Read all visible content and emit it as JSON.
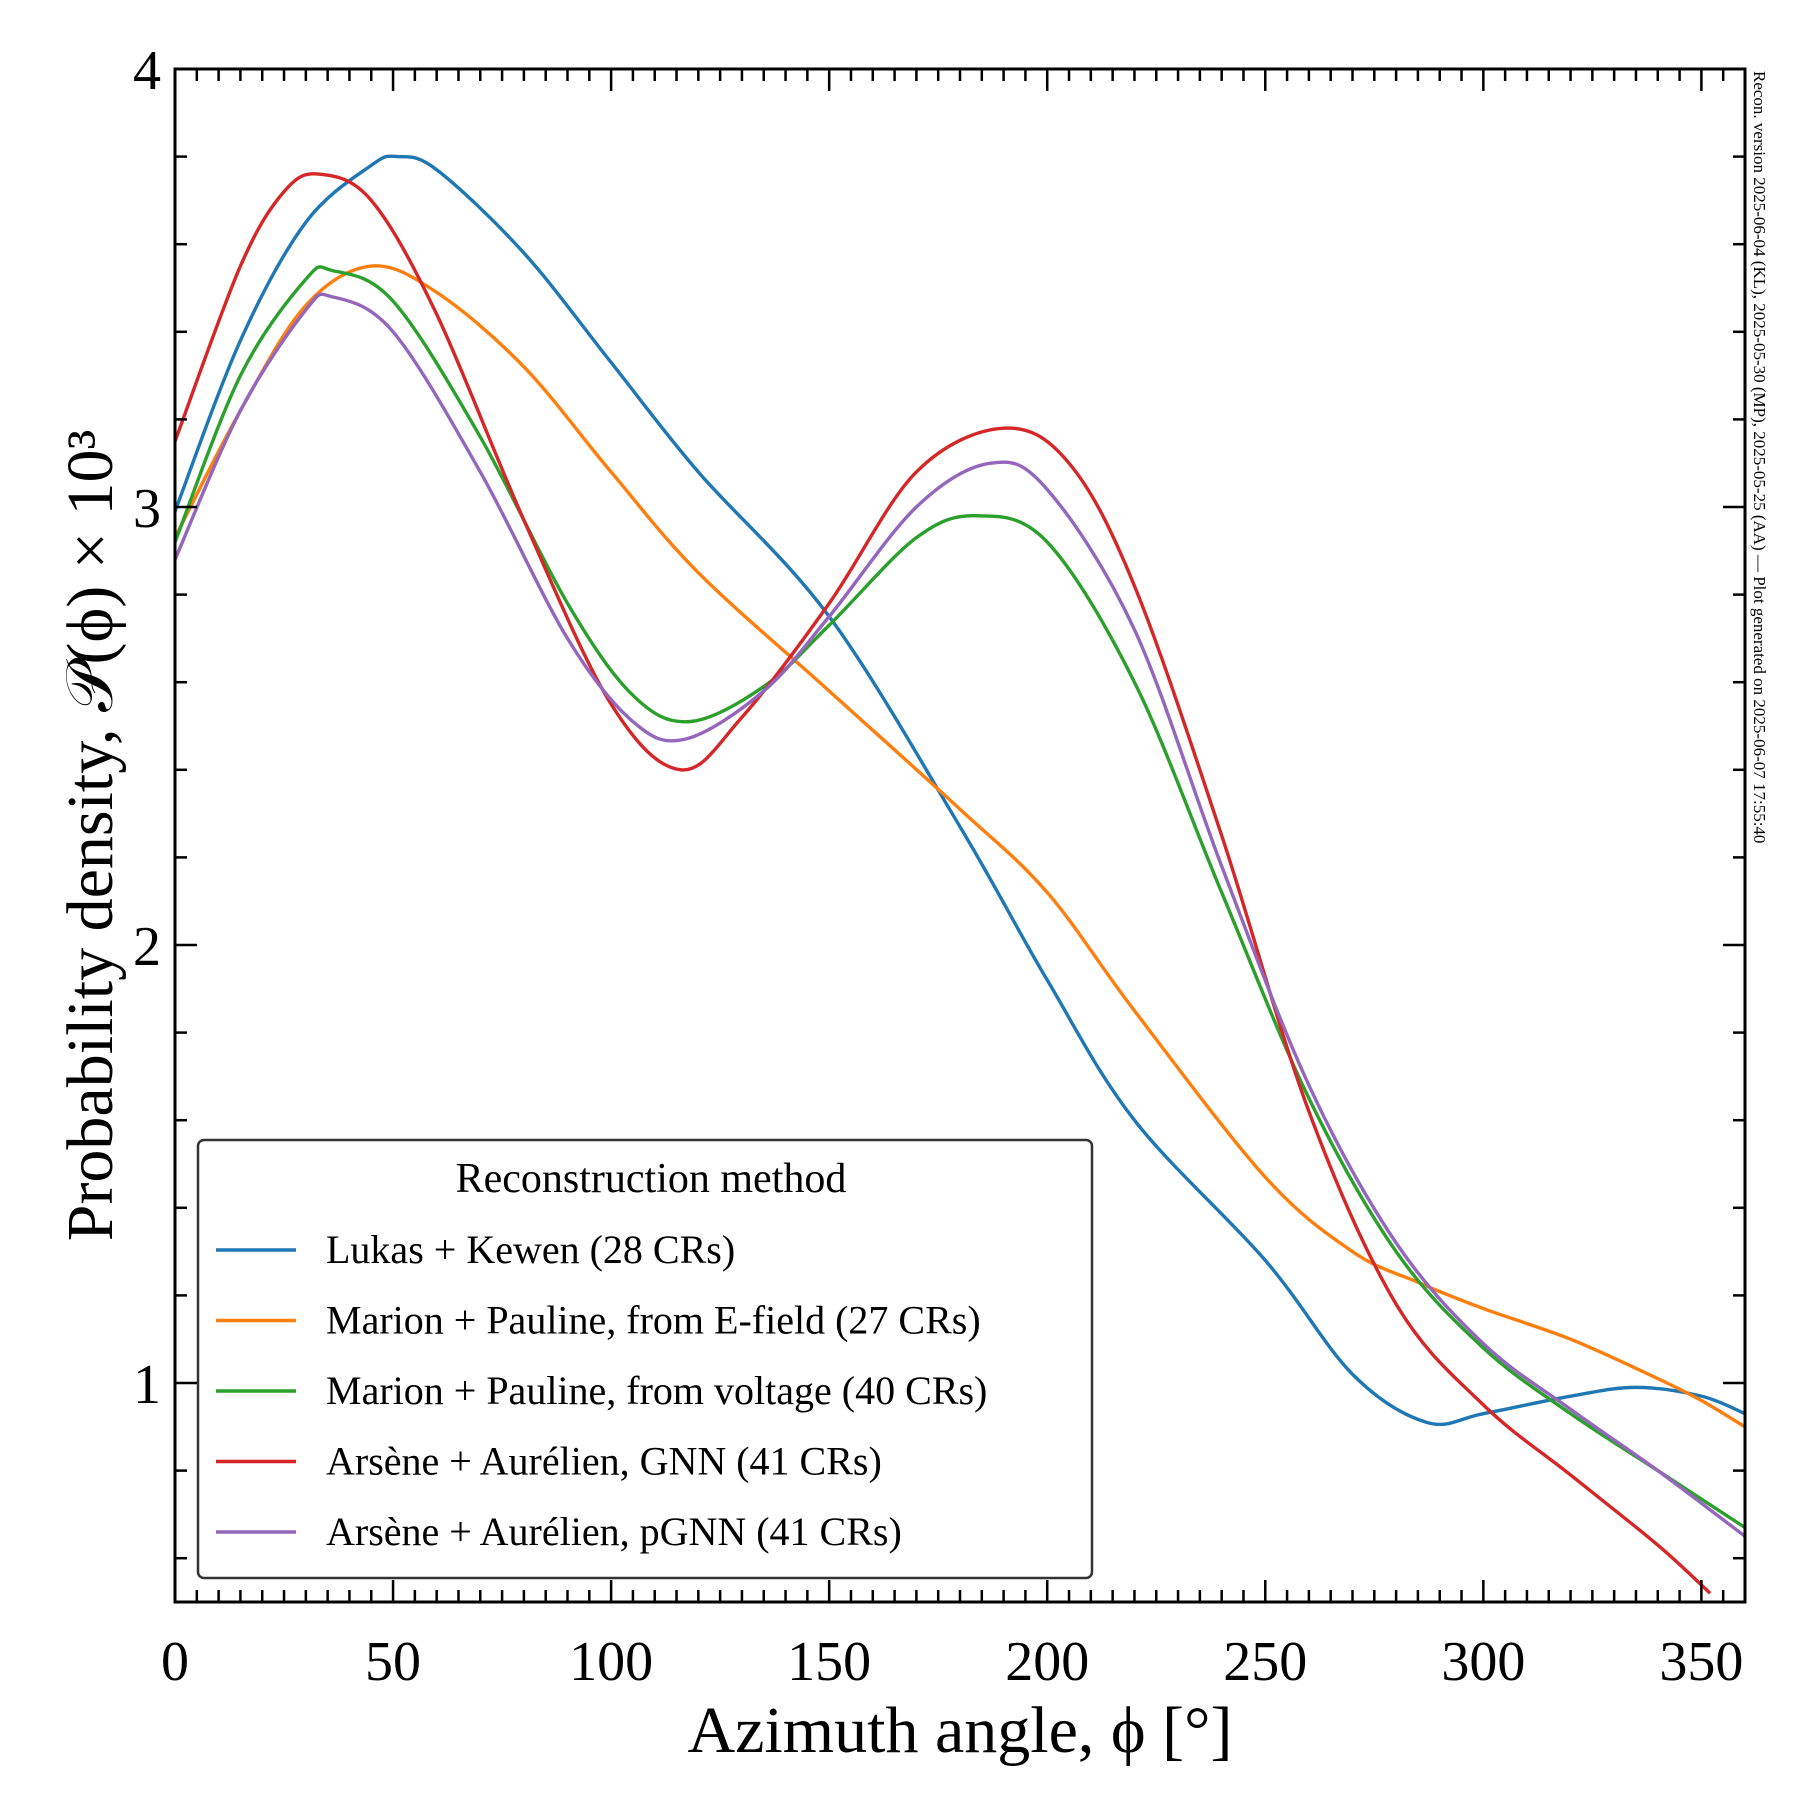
{
  "chart_data": {
    "type": "line",
    "title": "",
    "xlabel": "Azimuth angle, ϕ [°]",
    "ylabel": "Probability density, 𝒫(ϕ) × 10³",
    "xlim": [
      0,
      360
    ],
    "ylim": [
      0.5,
      4.0
    ],
    "x_ticks": [
      0,
      50,
      100,
      150,
      200,
      250,
      300,
      350
    ],
    "x_tick_labels": [
      "0",
      "50",
      "100",
      "150",
      "200",
      "250",
      "300",
      "350"
    ],
    "x_minor_step": 5,
    "y_ticks": [
      1,
      2,
      3,
      4
    ],
    "y_tick_labels": [
      "1",
      "2",
      "3",
      "4"
    ],
    "y_minor_step": 0.2,
    "grid": false,
    "legend": {
      "title": "Reconstruction method",
      "placement": "lower-left"
    },
    "side_annotation": "Recon. version 2025-06-04 (KL), 2025-05-30 (MP), 2025-05-25 (AA) — Plot generated on 2025-06-07 17:55:40",
    "series": [
      {
        "name": "Lukas + Kewen (28 CRs)",
        "color": "#1f77b4",
        "x": [
          0,
          15,
          30,
          45,
          51,
          60,
          80,
          100,
          120,
          150,
          180,
          200,
          220,
          250,
          270,
          287,
          300,
          320,
          335,
          350,
          360
        ],
        "y": [
          2.99,
          3.38,
          3.65,
          3.78,
          3.8,
          3.77,
          3.58,
          3.33,
          3.08,
          2.75,
          2.27,
          1.92,
          1.6,
          1.28,
          1.02,
          0.91,
          0.93,
          0.97,
          0.99,
          0.97,
          0.93
        ]
      },
      {
        "name": "Marion + Pauline, from E-field (27 CRs)",
        "color": "#ff7f0e",
        "x": [
          0,
          15,
          30,
          45,
          60,
          80,
          100,
          120,
          150,
          180,
          200,
          220,
          250,
          270,
          285,
          300,
          320,
          340,
          350,
          360
        ],
        "y": [
          2.93,
          3.22,
          3.46,
          3.55,
          3.49,
          3.32,
          3.08,
          2.85,
          2.58,
          2.31,
          2.12,
          1.85,
          1.47,
          1.3,
          1.23,
          1.17,
          1.1,
          1.01,
          0.96,
          0.9
        ]
      },
      {
        "name": "Marion + Pauline, from voltage (40 CRs)",
        "color": "#2ca02c",
        "x": [
          0,
          15,
          30,
          36,
          50,
          70,
          90,
          105,
          118,
          135,
          150,
          170,
          184,
          200,
          220,
          240,
          260,
          280,
          300,
          320,
          340,
          360
        ],
        "y": [
          2.92,
          3.3,
          3.52,
          3.54,
          3.47,
          3.16,
          2.78,
          2.57,
          2.51,
          2.59,
          2.73,
          2.93,
          2.98,
          2.92,
          2.6,
          2.12,
          1.65,
          1.3,
          1.08,
          0.93,
          0.8,
          0.67
        ]
      },
      {
        "name": "Arsène + Aurélien, GNN (41 CRs)",
        "color": "#d62728",
        "x": [
          0,
          15,
          25,
          33,
          45,
          60,
          80,
          100,
          116,
          130,
          150,
          170,
          190,
          205,
          220,
          240,
          260,
          280,
          300,
          320,
          340,
          352
        ],
        "y": [
          3.15,
          3.55,
          3.72,
          3.76,
          3.7,
          3.44,
          2.97,
          2.55,
          2.4,
          2.52,
          2.78,
          3.08,
          3.18,
          3.1,
          2.82,
          2.25,
          1.62,
          1.18,
          0.95,
          0.79,
          0.63,
          0.52
        ]
      },
      {
        "name": "Arsène + Aurélien, pGNN (41 CRs)",
        "color": "#9467bd",
        "x": [
          0,
          15,
          30,
          36,
          50,
          70,
          90,
          105,
          117,
          135,
          150,
          170,
          187,
          200,
          220,
          240,
          260,
          280,
          300,
          320,
          340,
          360
        ],
        "y": [
          2.88,
          3.22,
          3.45,
          3.48,
          3.4,
          3.08,
          2.7,
          2.51,
          2.47,
          2.58,
          2.75,
          3.0,
          3.1,
          3.04,
          2.72,
          2.18,
          1.68,
          1.32,
          1.09,
          0.94,
          0.8,
          0.65
        ]
      }
    ]
  }
}
